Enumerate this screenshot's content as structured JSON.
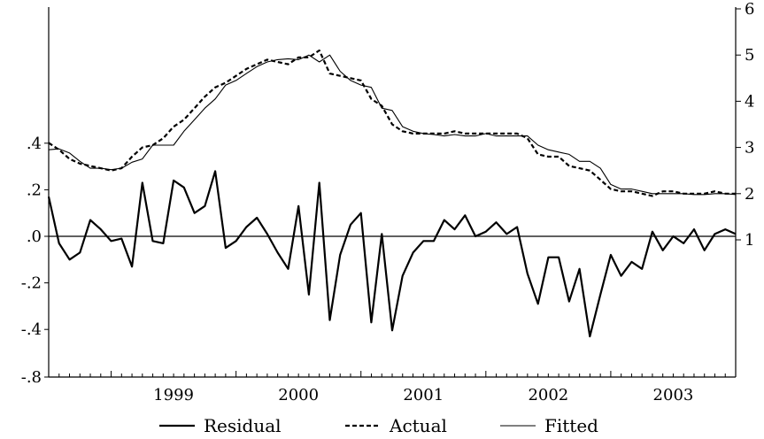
{
  "chart_data": {
    "type": "line",
    "title": "",
    "xlabel": "",
    "ylabel": "",
    "x_tick_labels": [
      "1999",
      "2000",
      "2001",
      "2002",
      "2003"
    ],
    "x_range": [
      1998.5,
      2004.0
    ],
    "left_axis": {
      "range": [
        -0.8,
        0.6
      ],
      "ticks": [
        ".4",
        ".2",
        ".0",
        "-.2",
        "-.4",
        "-.8"
      ],
      "tick_values": [
        0.4,
        0.2,
        0.0,
        -0.2,
        -0.4,
        -0.8
      ]
    },
    "right_axis": {
      "range": [
        0.4,
        6.0
      ],
      "ticks": [
        "6",
        "5",
        "4",
        "3",
        "2",
        "1"
      ],
      "tick_values": [
        6,
        5,
        4,
        3,
        2,
        1
      ]
    },
    "zero_line": true,
    "legend_position": "bottom",
    "x_time": [
      1998.5,
      1998.583,
      1998.667,
      1998.75,
      1998.833,
      1998.917,
      1999.0,
      1999.083,
      1999.167,
      1999.25,
      1999.333,
      1999.417,
      1999.5,
      1999.583,
      1999.667,
      1999.75,
      1999.833,
      1999.917,
      2000.0,
      2000.083,
      2000.167,
      2000.25,
      2000.333,
      2000.417,
      2000.5,
      2000.583,
      2000.667,
      2000.75,
      2000.833,
      2000.917,
      2001.0,
      2001.083,
      2001.167,
      2001.25,
      2001.333,
      2001.417,
      2001.5,
      2001.583,
      2001.667,
      2001.75,
      2001.833,
      2001.917,
      2002.0,
      2002.083,
      2002.167,
      2002.25,
      2002.333,
      2002.417,
      2002.5,
      2002.583,
      2002.667,
      2002.75,
      2002.833,
      2002.917,
      2003.0,
      2003.083,
      2003.167,
      2003.25,
      2003.333,
      2003.417,
      2003.5,
      2003.583,
      2003.667,
      2003.75,
      2003.833,
      2003.917,
      2004.0
    ],
    "series": [
      {
        "name": "Residual",
        "axis": "left",
        "values": [
          0.17,
          -0.03,
          -0.1,
          -0.07,
          0.07,
          0.03,
          -0.02,
          -0.01,
          -0.13,
          0.23,
          -0.02,
          -0.03,
          0.24,
          0.21,
          0.1,
          0.13,
          0.28,
          -0.05,
          -0.02,
          0.04,
          0.08,
          0.01,
          -0.07,
          -0.14,
          0.13,
          -0.25,
          0.23,
          -0.36,
          -0.08,
          0.05,
          0.1,
          -0.37,
          0.01,
          -0.41,
          -0.17,
          -0.07,
          -0.02,
          -0.02,
          0.07,
          0.03,
          0.09,
          0.0,
          0.02,
          0.06,
          0.01,
          0.04,
          -0.16,
          -0.29,
          -0.09,
          -0.09,
          -0.28,
          -0.14,
          -0.46,
          -0.25,
          -0.08,
          -0.17,
          -0.11,
          -0.14,
          0.02,
          -0.06,
          0.0,
          -0.03,
          0.03,
          -0.06,
          0.01,
          0.03,
          0.01
        ]
      },
      {
        "name": "Actual",
        "axis": "right",
        "values": [
          3.1,
          2.95,
          2.75,
          2.65,
          2.6,
          2.55,
          2.5,
          2.55,
          2.8,
          3.0,
          3.05,
          3.2,
          3.45,
          3.6,
          3.85,
          4.1,
          4.3,
          4.4,
          4.55,
          4.7,
          4.8,
          4.9,
          4.85,
          4.8,
          4.95,
          4.95,
          5.1,
          4.6,
          4.55,
          4.5,
          4.45,
          4.05,
          3.9,
          3.5,
          3.35,
          3.3,
          3.3,
          3.3,
          3.3,
          3.35,
          3.3,
          3.3,
          3.3,
          3.3,
          3.3,
          3.3,
          3.2,
          2.85,
          2.8,
          2.8,
          2.6,
          2.55,
          2.5,
          2.3,
          2.1,
          2.05,
          2.05,
          2.0,
          1.95,
          2.05,
          2.05,
          2.0,
          2.0,
          2.0,
          2.05,
          2.0,
          2.0
        ]
      },
      {
        "name": "Fitted",
        "axis": "right",
        "values": [
          2.95,
          2.97,
          2.88,
          2.7,
          2.55,
          2.55,
          2.52,
          2.55,
          2.68,
          2.75,
          3.05,
          3.05,
          3.05,
          3.35,
          3.6,
          3.85,
          4.05,
          4.35,
          4.45,
          4.6,
          4.75,
          4.85,
          4.9,
          4.92,
          4.9,
          5.0,
          4.85,
          5.0,
          4.65,
          4.45,
          4.35,
          4.3,
          3.85,
          3.8,
          3.45,
          3.35,
          3.3,
          3.28,
          3.25,
          3.28,
          3.25,
          3.25,
          3.3,
          3.25,
          3.25,
          3.25,
          3.25,
          3.05,
          2.95,
          2.9,
          2.85,
          2.7,
          2.7,
          2.55,
          2.2,
          2.1,
          2.1,
          2.05,
          2.0,
          2.0,
          2.0,
          2.0,
          1.98,
          1.98,
          2.0,
          2.0,
          1.98
        ]
      }
    ]
  }
}
